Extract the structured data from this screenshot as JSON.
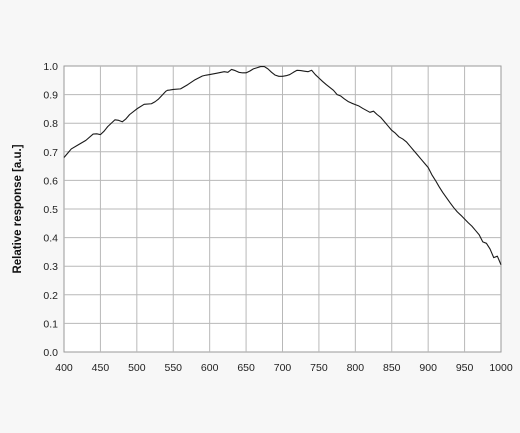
{
  "chart_data": {
    "type": "line",
    "title": "",
    "xlabel": "",
    "ylabel": "Relative response [a.u.]",
    "xlim": [
      400,
      1000
    ],
    "ylim": [
      0,
      1.0
    ],
    "grid": true,
    "x_ticks": [
      "400",
      "450",
      "500",
      "550",
      "600",
      "650",
      "700",
      "750",
      "800",
      "850",
      "900",
      "950",
      "1000"
    ],
    "y_ticks": [
      "0.0",
      "0.1",
      "0.2",
      "0.3",
      "0.4",
      "0.5",
      "0.6",
      "0.7",
      "0.8",
      "0.9",
      "1.0"
    ],
    "series": [
      {
        "x": [
          400,
          405,
          410,
          420,
          430,
          440,
          445,
          450,
          455,
          460,
          470,
          475,
          480,
          485,
          490,
          500,
          510,
          520,
          525,
          530,
          540,
          542,
          545,
          550,
          560,
          570,
          580,
          590,
          595,
          600,
          610,
          620,
          625,
          630,
          635,
          640,
          645,
          650,
          655,
          660,
          665,
          670,
          675,
          680,
          685,
          690,
          695,
          700,
          705,
          710,
          715,
          720,
          725,
          730,
          735,
          740,
          745,
          750,
          755,
          760,
          765,
          770,
          775,
          780,
          785,
          790,
          795,
          800,
          805,
          810,
          815,
          820,
          825,
          830,
          835,
          840,
          845,
          850,
          855,
          860,
          865,
          870,
          875,
          880,
          885,
          890,
          895,
          900,
          905,
          910,
          915,
          920,
          925,
          930,
          935,
          940,
          945,
          950,
          955,
          960,
          965,
          970,
          975,
          980,
          985,
          990,
          995,
          1000
        ],
        "y": [
          0.68,
          0.695,
          0.71,
          0.725,
          0.74,
          0.762,
          0.763,
          0.76,
          0.772,
          0.788,
          0.812,
          0.81,
          0.805,
          0.815,
          0.83,
          0.85,
          0.866,
          0.868,
          0.875,
          0.885,
          0.912,
          0.915,
          0.916,
          0.918,
          0.92,
          0.935,
          0.952,
          0.965,
          0.968,
          0.97,
          0.975,
          0.98,
          0.978,
          0.988,
          0.984,
          0.978,
          0.976,
          0.976,
          0.982,
          0.99,
          0.994,
          0.998,
          0.998,
          0.99,
          0.978,
          0.968,
          0.964,
          0.964,
          0.966,
          0.97,
          0.978,
          0.985,
          0.984,
          0.982,
          0.98,
          0.985,
          0.97,
          0.958,
          0.946,
          0.935,
          0.925,
          0.915,
          0.9,
          0.895,
          0.885,
          0.876,
          0.87,
          0.865,
          0.86,
          0.852,
          0.845,
          0.838,
          0.842,
          0.83,
          0.82,
          0.805,
          0.79,
          0.775,
          0.765,
          0.752,
          0.745,
          0.735,
          0.72,
          0.705,
          0.69,
          0.675,
          0.66,
          0.645,
          0.62,
          0.6,
          0.578,
          0.558,
          0.54,
          0.522,
          0.505,
          0.49,
          0.478,
          0.465,
          0.452,
          0.44,
          0.425,
          0.41,
          0.385,
          0.38,
          0.36,
          0.33,
          0.335,
          0.305
        ]
      }
    ]
  }
}
